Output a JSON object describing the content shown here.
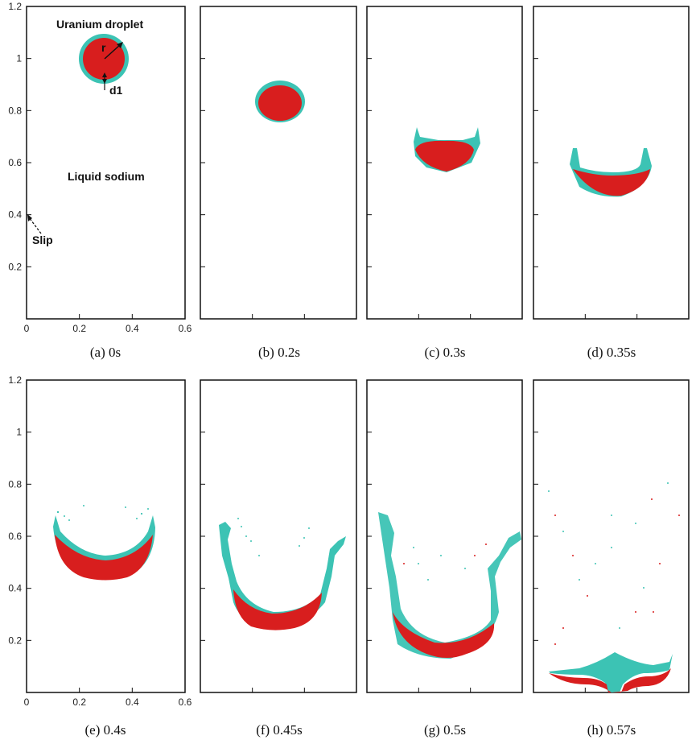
{
  "figure": {
    "panels": [
      {
        "caption": "(a) 0s"
      },
      {
        "caption": "(b) 0.2s"
      },
      {
        "caption": "(c) 0.3s"
      },
      {
        "caption": "(d) 0.35s"
      },
      {
        "caption": "(e) 0.4s"
      },
      {
        "caption": "(f) 0.45s"
      },
      {
        "caption": "(g) 0.5s"
      },
      {
        "caption": "(h) 0.57s"
      }
    ],
    "y_ticks": [
      "0.2",
      "0.4",
      "0.6",
      "0.8",
      "1",
      "1.2"
    ],
    "x_ticks": [
      "0",
      "0.2",
      "0.4",
      "0.6"
    ],
    "annotations": {
      "droplet_label": "Uranium droplet",
      "radius_label": "r",
      "thickness_label": "d1",
      "fluid_label": "Liquid sodium",
      "boundary_label": "Slip"
    },
    "colors": {
      "uranium": "#d81e1e",
      "shell": "#3cc3b4",
      "frame": "#111111"
    }
  }
}
